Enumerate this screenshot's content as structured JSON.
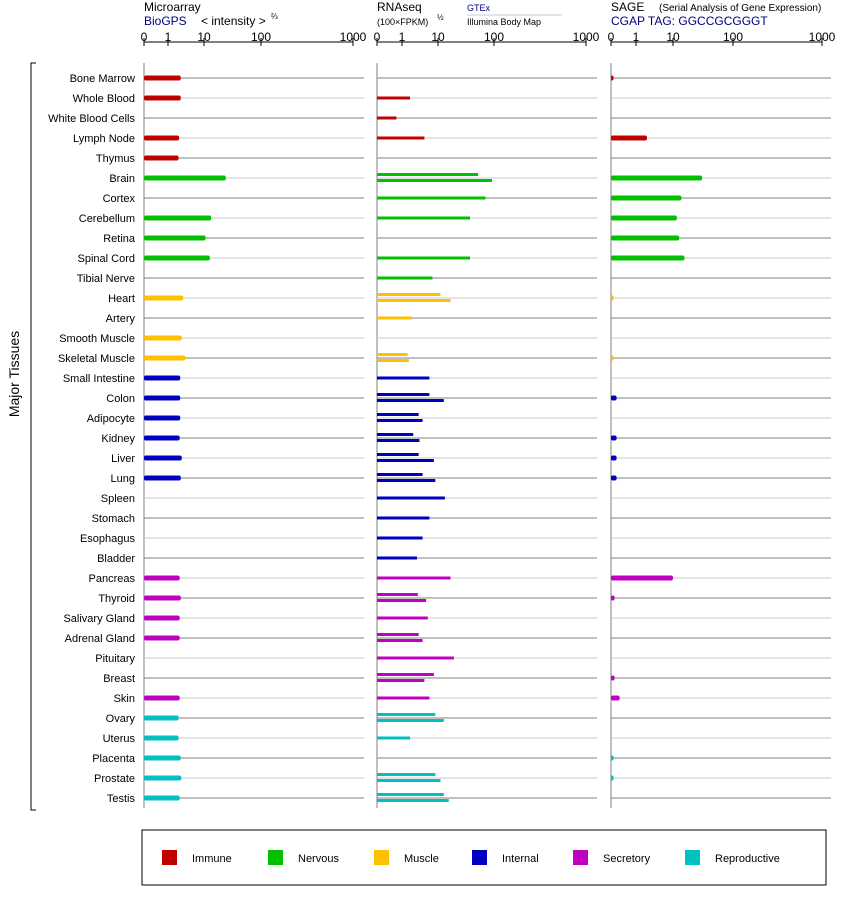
{
  "headers": {
    "microarray_title": "Microarray",
    "microarray_source": "BioGPS",
    "microarray_unit": "< intensity >",
    "microarray_unit_exp": "⅔",
    "rnaseq_title": "RNAseq",
    "rnaseq_unit": "(100×FPKM)",
    "rnaseq_unit_exp": "½",
    "gtex_label": "GTEx",
    "illumina_label": "Illumina Body Map",
    "sage_title": "SAGE",
    "sage_subtitle": "(Serial Analysis of Gene Expression)",
    "sage_tag": "CGAP TAG: GGCCGCGGGT"
  },
  "axis_ticks": [
    "0",
    "1",
    "10",
    "100",
    "1000"
  ],
  "y_group_label": "Major Tissues",
  "colors": {
    "Immune": "#c00000",
    "Nervous": "#00c000",
    "Muscle": "#ffc000",
    "Internal": "#0000c0",
    "Secretory": "#c000c0",
    "Reproductive": "#00c0c0"
  },
  "legend": [
    {
      "label": "Immune",
      "key": "Immune"
    },
    {
      "label": "Nervous",
      "key": "Nervous"
    },
    {
      "label": "Muscle",
      "key": "Muscle"
    },
    {
      "label": "Internal",
      "key": "Internal"
    },
    {
      "label": "Secretory",
      "key": "Secretory"
    },
    {
      "label": "Reproductive",
      "key": "Reproductive"
    }
  ],
  "chart_data": {
    "type": "bar",
    "scale": "power axis with ticks 0, 1, 10, 100, 1000",
    "xlim": [
      0,
      1000
    ],
    "series_names": [
      "Microarray",
      "RNAseq GTEx",
      "RNAseq Illumina Body Map",
      "SAGE"
    ],
    "tissues": [
      {
        "name": "Bone Marrow",
        "group": "Immune",
        "microarray": 2.8,
        "gtex": null,
        "ibm": null,
        "sage": 0.01
      },
      {
        "name": "Whole Blood",
        "group": "Immune",
        "microarray": 2.8,
        "gtex": 2.2,
        "ibm": null,
        "sage": null
      },
      {
        "name": "White Blood Cells",
        "group": "Immune",
        "microarray": null,
        "gtex": null,
        "ibm": 0.6,
        "sage": null
      },
      {
        "name": "Lymph Node",
        "group": "Immune",
        "microarray": 2.5,
        "gtex": null,
        "ibm": 5.5,
        "sage": 2.7
      },
      {
        "name": "Thymus",
        "group": "Immune",
        "microarray": 2.4,
        "gtex": null,
        "ibm": null,
        "sage": null
      },
      {
        "name": "Brain",
        "group": "Nervous",
        "microarray": 30,
        "gtex": 65,
        "ibm": 95,
        "sage": 42
      },
      {
        "name": "Cortex",
        "group": "Nervous",
        "microarray": null,
        "gtex": 80,
        "ibm": null,
        "sage": 17
      },
      {
        "name": "Cerebellum",
        "group": "Nervous",
        "microarray": 15,
        "gtex": 50,
        "ibm": null,
        "sage": 13
      },
      {
        "name": "Retina",
        "group": "Nervous",
        "microarray": 11,
        "gtex": null,
        "ibm": null,
        "sage": 15
      },
      {
        "name": "Spinal Cord",
        "group": "Nervous",
        "microarray": 14,
        "gtex": 50,
        "ibm": null,
        "sage": 20
      },
      {
        "name": "Tibial Nerve",
        "group": "Nervous",
        "microarray": null,
        "gtex": 8,
        "ibm": null,
        "sage": null
      },
      {
        "name": "Heart",
        "group": "Muscle",
        "microarray": 3.3,
        "gtex": 12,
        "ibm": 22,
        "sage": 0.01
      },
      {
        "name": "Artery",
        "group": "Muscle",
        "microarray": null,
        "gtex": 2.5,
        "ibm": null,
        "sage": null
      },
      {
        "name": "Smooth Muscle",
        "group": "Muscle",
        "microarray": 3.0,
        "gtex": null,
        "ibm": null,
        "sage": null
      },
      {
        "name": "Skeletal Muscle",
        "group": "Muscle",
        "microarray": 3.8,
        "gtex": 1.8,
        "ibm": 2.0,
        "sage": 0.01
      },
      {
        "name": "Small Intestine",
        "group": "Internal",
        "microarray": 2.7,
        "gtex": 7,
        "ibm": null,
        "sage": null
      },
      {
        "name": "Colon",
        "group": "Internal",
        "microarray": 2.7,
        "gtex": 7,
        "ibm": 15,
        "sage": 0.05
      },
      {
        "name": "Adipocyte",
        "group": "Internal",
        "microarray": 2.7,
        "gtex": 4,
        "ibm": 5,
        "sage": null
      },
      {
        "name": "Kidney",
        "group": "Internal",
        "microarray": 2.6,
        "gtex": 2.8,
        "ibm": 4.2,
        "sage": 0.05
      },
      {
        "name": "Liver",
        "group": "Internal",
        "microarray": 3.0,
        "gtex": 4,
        "ibm": 8.5,
        "sage": 0.05
      },
      {
        "name": "Lung",
        "group": "Internal",
        "microarray": 2.8,
        "gtex": 5,
        "ibm": 9,
        "sage": 0.05
      },
      {
        "name": "Spleen",
        "group": "Internal",
        "microarray": null,
        "gtex": 16,
        "ibm": null,
        "sage": null
      },
      {
        "name": "Stomach",
        "group": "Internal",
        "microarray": null,
        "gtex": 7,
        "ibm": null,
        "sage": null
      },
      {
        "name": "Esophagus",
        "group": "Internal",
        "microarray": null,
        "gtex": 5,
        "ibm": null,
        "sage": null
      },
      {
        "name": "Bladder",
        "group": "Internal",
        "microarray": null,
        "gtex": 3.6,
        "ibm": null,
        "sage": null
      },
      {
        "name": "Pancreas",
        "group": "Secretory",
        "microarray": 2.6,
        "gtex": 22,
        "ibm": null,
        "sage": 10
      },
      {
        "name": "Thyroid",
        "group": "Secretory",
        "microarray": 2.8,
        "gtex": 3.8,
        "ibm": 6,
        "sage": 0.02
      },
      {
        "name": "Salivary Gland",
        "group": "Secretory",
        "microarray": 2.6,
        "gtex": 6.5,
        "ibm": null,
        "sage": null
      },
      {
        "name": "Adrenal Gland",
        "group": "Secretory",
        "microarray": 2.6,
        "gtex": 4,
        "ibm": 5,
        "sage": null
      },
      {
        "name": "Pituitary",
        "group": "Secretory",
        "microarray": null,
        "gtex": 26,
        "ibm": null,
        "sage": null
      },
      {
        "name": "Breast",
        "group": "Secretory",
        "microarray": null,
        "gtex": 8.5,
        "ibm": 5.5,
        "sage": 0.02
      },
      {
        "name": "Skin",
        "group": "Secretory",
        "microarray": 2.6,
        "gtex": 7,
        "ibm": null,
        "sage": 0.12
      },
      {
        "name": "Ovary",
        "group": "Reproductive",
        "microarray": 2.4,
        "gtex": 9,
        "ibm": 15,
        "sage": null
      },
      {
        "name": "Uterus",
        "group": "Reproductive",
        "microarray": 2.4,
        "gtex": 2.2,
        "ibm": null,
        "sage": null
      },
      {
        "name": "Placenta",
        "group": "Reproductive",
        "microarray": 2.8,
        "gtex": null,
        "ibm": null,
        "sage": 0.01
      },
      {
        "name": "Prostate",
        "group": "Reproductive",
        "microarray": 2.9,
        "gtex": 9,
        "ibm": 12,
        "sage": 0.01
      },
      {
        "name": "Testis",
        "group": "Reproductive",
        "microarray": 2.6,
        "gtex": 15,
        "ibm": 20,
        "sage": null
      }
    ]
  }
}
